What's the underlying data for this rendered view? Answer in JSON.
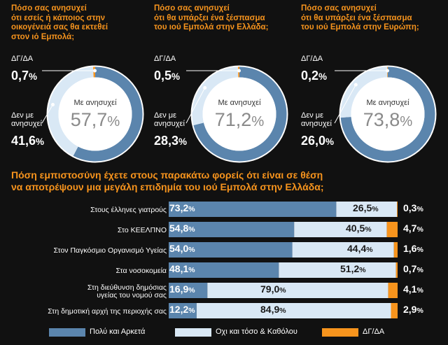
{
  "colors": {
    "blue": "#5b85ad",
    "light": "#d9e8f5",
    "orange": "#f7941d",
    "background": "#111111"
  },
  "chart_data": [
    {
      "type": "pie",
      "title": "Πόσο σας ανησυχεί ότι εσείς ή κάποιος στην οικογένειά σας θα εκτεθεί στον ιό Εμπολά;",
      "title_lines": [
        "Πόσο σας ανησυχεί",
        "ότι εσείς ή κάποιος στην",
        "οικογένειά σας θα εκτεθεί",
        "στον ιό Εμπολά;"
      ],
      "center_label": "Με ανησυχεί",
      "center_value": "57,7",
      "slices": [
        {
          "label": "Με ανησυχεί",
          "value": 57.7
        },
        {
          "label": "Δεν με ανησυχεί",
          "label_lines": [
            "Δεν με",
            "ανησυχεί"
          ],
          "value": 41.6,
          "display": "41,6"
        },
        {
          "label": "ΔΓ/ΔΑ",
          "value": 0.7,
          "display": "0,7"
        }
      ]
    },
    {
      "type": "pie",
      "title": "Πόσο σας ανησυχεί ότι θα υπάρξει ένα ξέσπασμα του ιού Εμπολά στην Ελλάδα;",
      "title_lines": [
        "Πόσο σας ανησυχεί",
        "ότι θα υπάρξει ένα ξέσπασμα",
        "του ιού Εμπολά στην Ελλάδα;"
      ],
      "center_label": "Με ανησυχεί",
      "center_value": "71,2",
      "slices": [
        {
          "label": "Με ανησυχεί",
          "value": 71.2
        },
        {
          "label": "Δεν με ανησυχεί",
          "label_lines": [
            "Δεν με",
            "ανησυχεί"
          ],
          "value": 28.3,
          "display": "28,3"
        },
        {
          "label": "ΔΓ/ΔΑ",
          "value": 0.5,
          "display": "0,5"
        }
      ]
    },
    {
      "type": "pie",
      "title": "Πόσο σας ανησυχεί ότι θα υπάρξει ένα ξέσπασμα του ιού Εμπολά στην Ευρώπη;",
      "title_lines": [
        "Πόσο σας ανησυχεί",
        "ότι θα υπάρξει ένα ξέσπασμα",
        "του ιού Εμπολά στην Ευρώπη;"
      ],
      "center_label": "Με ανησυχεί",
      "center_value": "73,8",
      "slices": [
        {
          "label": "Με ανησυχεί",
          "value": 73.8
        },
        {
          "label": "Δεν με ανησυχεί",
          "label_lines": [
            "Δεν με",
            "ανησυχεί"
          ],
          "value": 26.0,
          "display": "26,0"
        },
        {
          "label": "ΔΓ/ΔΑ",
          "value": 0.2,
          "display": "0,2"
        }
      ]
    },
    {
      "type": "bar",
      "orientation": "horizontal",
      "stacked": true,
      "title": "Πόση εμπιστοσύνη έχετε στους παρακάτω φορείς ότι είναι σε θέση να αποτρέψουν μια μεγάλη επιδημία του ιού Εμπολά στην Ελλάδα;",
      "title_lines": [
        "Πόση εμπιστοσύνη έχετε στους παρακάτω φορείς ότι είναι σε θέση",
        "να αποτρέψουν μια μεγάλη επιδημία του ιού Εμπολά στην Ελλάδα;"
      ],
      "categories": [
        "Στους έλληνες γιατρούς",
        "Στο ΚΕΕΛΠΝΟ",
        "Στον Παγκόσμιο Οργανισμό Υγείας",
        "Στα νοσοκομεία",
        "Στη διεύθυνση δημόσιας υγείας του νομού σας",
        "Στη δημοτική αρχή της περιοχής σας"
      ],
      "category_lines": [
        [
          "Στους έλληνες γιατρούς"
        ],
        [
          "Στο ΚΕΕΛΠΝΟ"
        ],
        [
          "Στον Παγκόσμιο Οργανισμό Υγείας"
        ],
        [
          "Στα νοσοκομεία"
        ],
        [
          "Στη διεύθυνση δημόσιας",
          "υγείας του νομού σας"
        ],
        [
          "Στη δημοτική αρχή της περιοχής σας"
        ]
      ],
      "series": [
        {
          "name": "Πολύ και Αρκετά",
          "values": [
            73.2,
            54.8,
            54.0,
            48.1,
            16.9,
            12.2
          ],
          "display": [
            "73,2",
            "54,8",
            "54,0",
            "48,1",
            "16,9",
            "12,2"
          ]
        },
        {
          "name": "Οχι και τόσο & Καθόλου",
          "values": [
            26.5,
            40.5,
            44.4,
            51.2,
            79.0,
            84.9
          ],
          "display": [
            "26,5",
            "40,5",
            "44,4",
            "51,2",
            "79,0",
            "84,9"
          ]
        },
        {
          "name": "ΔΓ/ΔΑ",
          "values": [
            0.3,
            4.7,
            1.6,
            0.7,
            4.1,
            2.9
          ],
          "display": [
            "0,3",
            "4,7",
            "1,6",
            "0,7",
            "4,1",
            "2,9"
          ]
        }
      ],
      "xlim": [
        0,
        100
      ],
      "legend_position": "bottom"
    }
  ]
}
